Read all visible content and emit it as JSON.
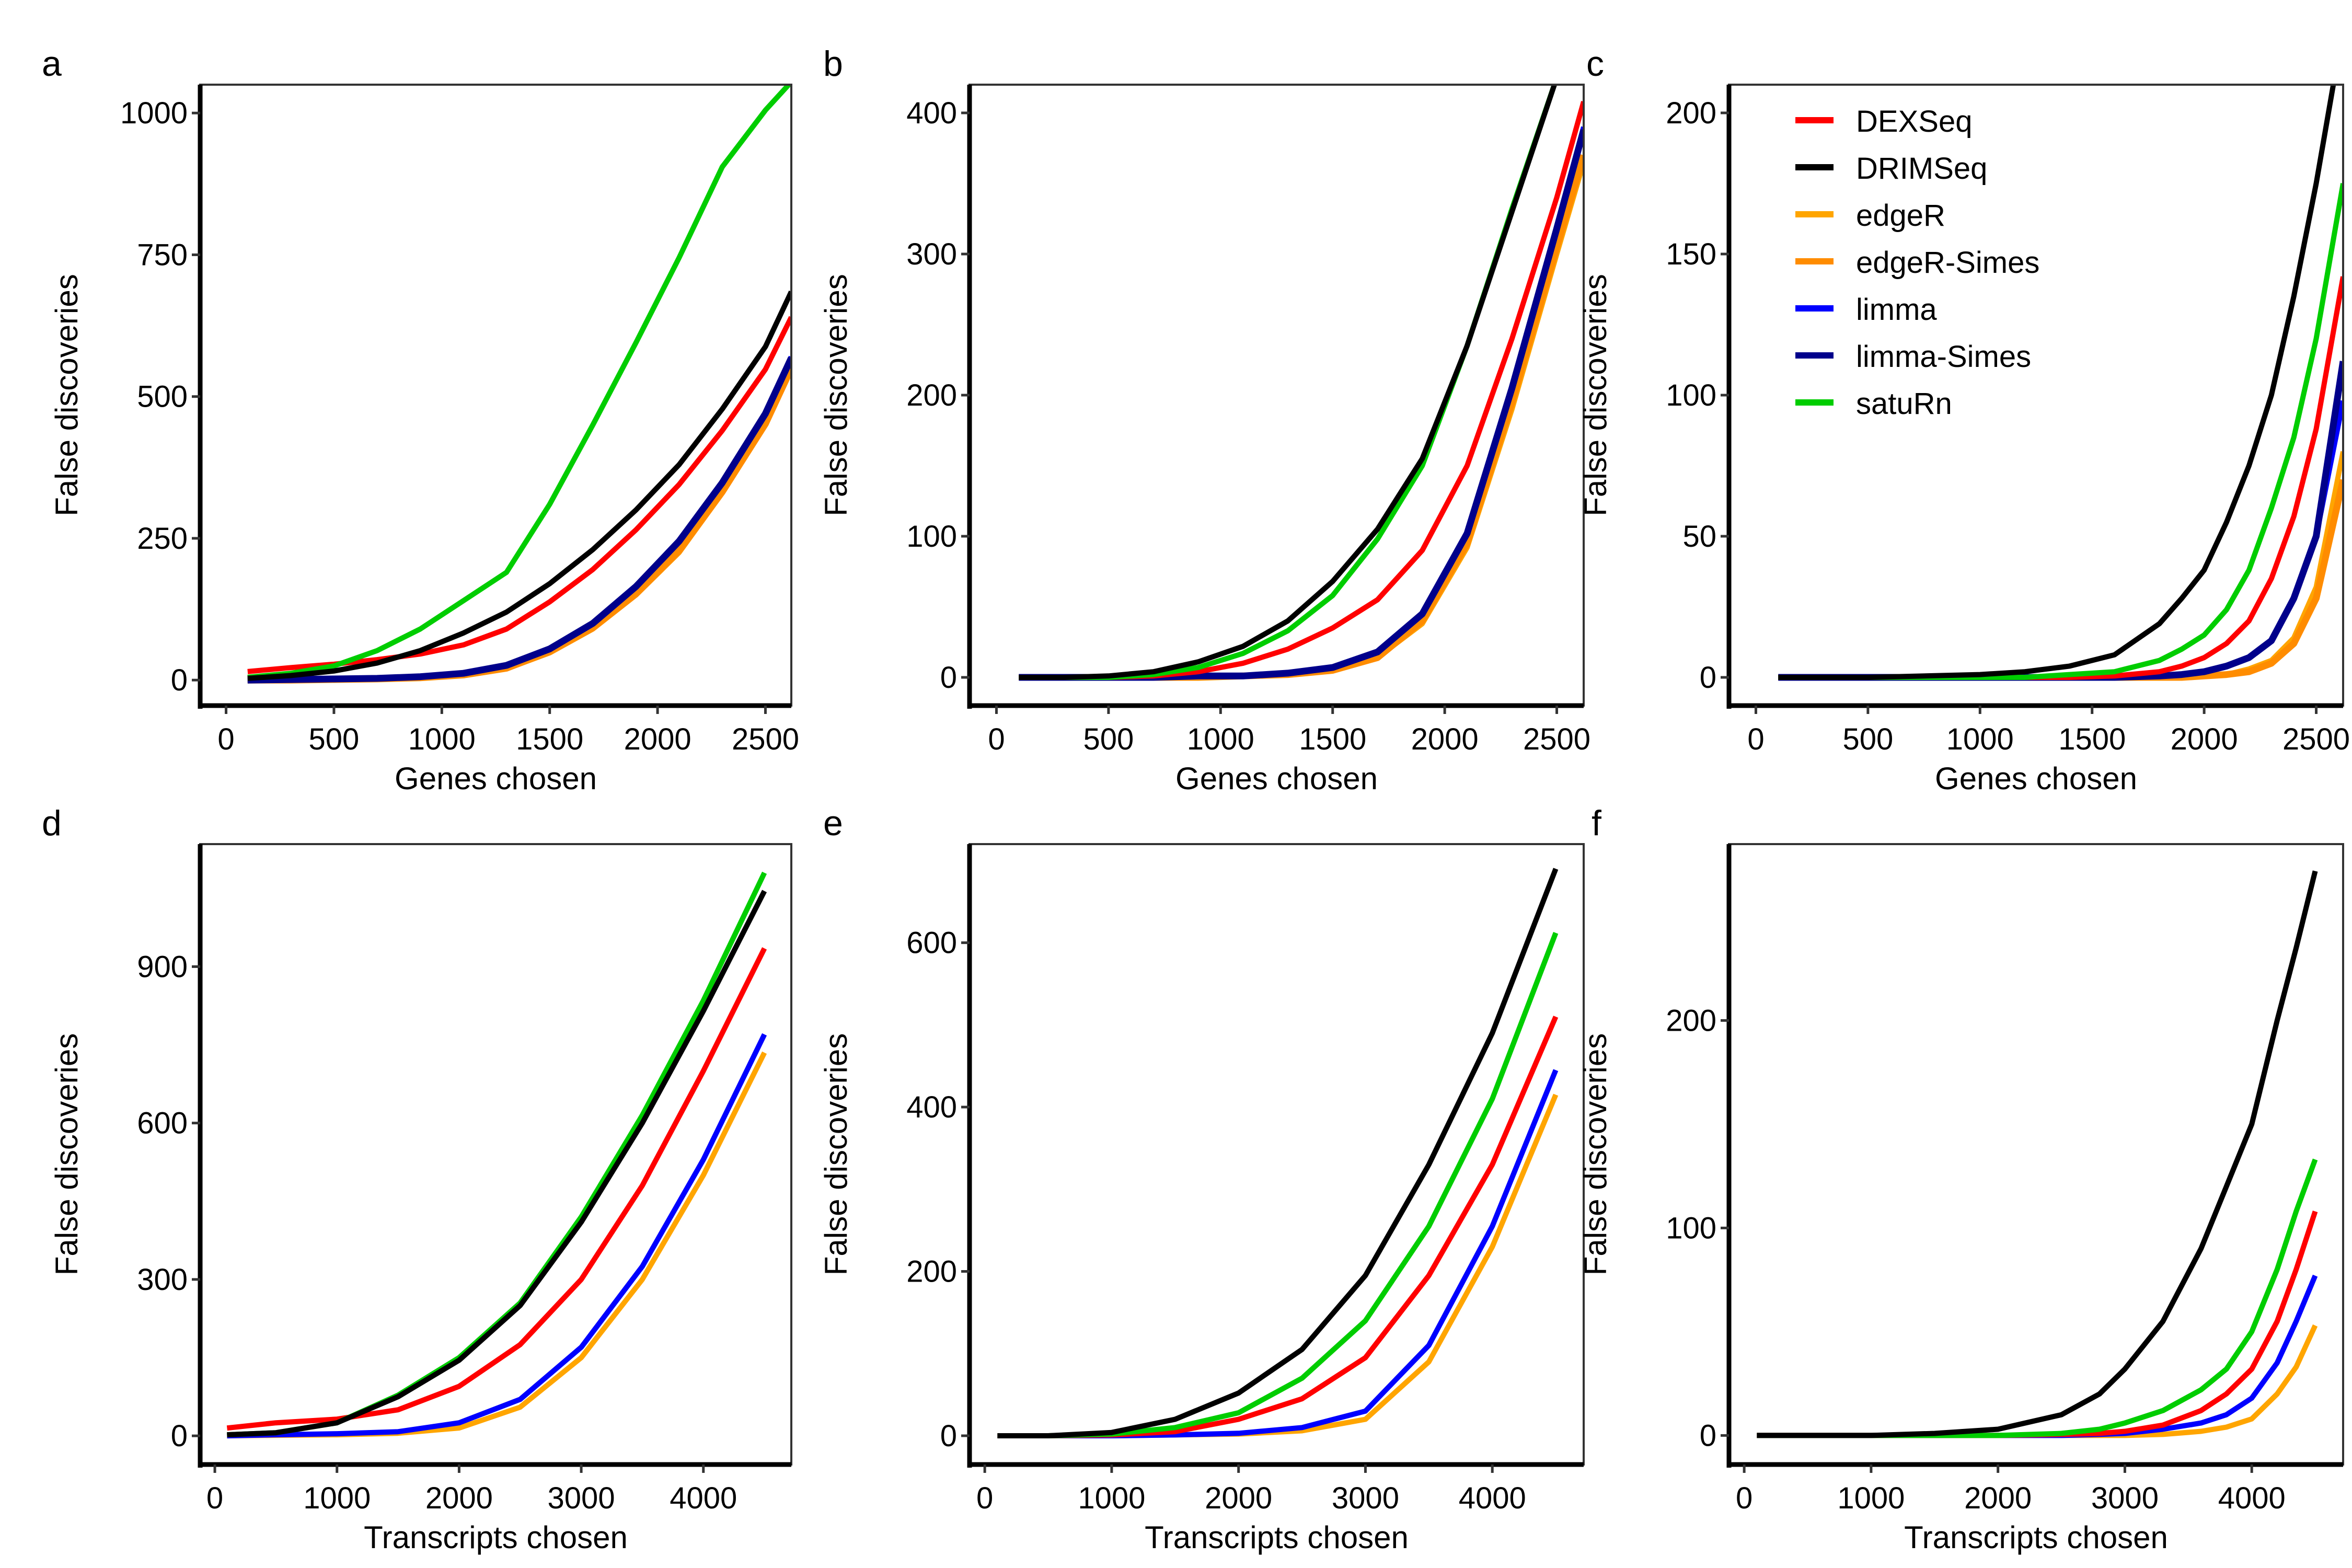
{
  "legend": {
    "placement": "panel-c-top-left",
    "entries": [
      {
        "name": "DEXSeq",
        "color": "#FF0000"
      },
      {
        "name": "DRIMSeq",
        "color": "#000000"
      },
      {
        "name": "edgeR",
        "color": "#FFA500"
      },
      {
        "name": "edgeR-Simes",
        "color": "#FF8C00"
      },
      {
        "name": "limma",
        "color": "#0000FF"
      },
      {
        "name": "limma-Simes",
        "color": "#00008B"
      },
      {
        "name": "satuRn",
        "color": "#00CD00"
      }
    ]
  },
  "chart_data": [
    {
      "id": "a",
      "type": "line",
      "title": "a",
      "xlabel": "Genes chosen",
      "ylabel": "False discoveries",
      "xlim": [
        -120,
        2620
      ],
      "ylim": [
        -45,
        1050
      ],
      "xticks": [
        0,
        500,
        1000,
        1500,
        2000,
        2500
      ],
      "yticks": [
        0,
        250,
        500,
        750,
        1000
      ],
      "x": [
        100,
        300,
        500,
        700,
        900,
        1100,
        1300,
        1500,
        1700,
        1900,
        2100,
        2300,
        2500,
        2620
      ],
      "series": [
        {
          "name": "DEXSeq",
          "values": [
            15,
            22,
            28,
            36,
            46,
            62,
            90,
            138,
            195,
            265,
            345,
            440,
            548,
            640
          ]
        },
        {
          "name": "DRIMSeq",
          "values": [
            3,
            8,
            16,
            30,
            52,
            83,
            120,
            170,
            230,
            300,
            380,
            478,
            588,
            685
          ]
        },
        {
          "name": "edgeR",
          "values": [
            0,
            0,
            1,
            2,
            4,
            9,
            20,
            48,
            90,
            150,
            225,
            330,
            450,
            548
          ]
        },
        {
          "name": "edgeR-Simes",
          "values": [
            0,
            0,
            1,
            2,
            4,
            9,
            21,
            50,
            92,
            152,
            228,
            332,
            452,
            550
          ]
        },
        {
          "name": "limma",
          "values": [
            0,
            1,
            2,
            3,
            6,
            12,
            26,
            55,
            100,
            165,
            245,
            348,
            470,
            570
          ]
        },
        {
          "name": "limma-Simes",
          "values": [
            0,
            1,
            2,
            3,
            6,
            12,
            26,
            55,
            100,
            165,
            245,
            348,
            470,
            568
          ]
        },
        {
          "name": "satuRn",
          "values": [
            5,
            12,
            25,
            52,
            90,
            140,
            190,
            310,
            450,
            595,
            745,
            905,
            1005,
            1055
          ]
        }
      ]
    },
    {
      "id": "b",
      "type": "line",
      "title": "b",
      "xlabel": "Genes chosen",
      "ylabel": "False discoveries",
      "xlim": [
        -120,
        2620
      ],
      "ylim": [
        -20,
        420
      ],
      "xticks": [
        0,
        500,
        1000,
        1500,
        2000,
        2500
      ],
      "yticks": [
        0,
        100,
        200,
        300,
        400
      ],
      "x": [
        100,
        300,
        500,
        700,
        900,
        1100,
        1300,
        1500,
        1700,
        1900,
        2100,
        2300,
        2500,
        2620
      ],
      "series": [
        {
          "name": "DEXSeq",
          "values": [
            0,
            0,
            0,
            1,
            4,
            10,
            20,
            35,
            55,
            90,
            150,
            240,
            340,
            408
          ]
        },
        {
          "name": "DRIMSeq",
          "values": [
            0,
            0,
            1,
            4,
            11,
            22,
            40,
            68,
            105,
            155,
            235,
            330,
            425,
            470
          ]
        },
        {
          "name": "edgeR",
          "values": [
            0,
            0,
            0,
            0,
            0,
            1,
            2,
            5,
            14,
            38,
            92,
            190,
            300,
            365
          ]
        },
        {
          "name": "edgeR-Simes",
          "values": [
            0,
            0,
            0,
            0,
            0,
            1,
            2,
            5,
            14,
            40,
            95,
            195,
            305,
            370
          ]
        },
        {
          "name": "limma",
          "values": [
            0,
            0,
            0,
            0,
            1,
            1,
            3,
            7,
            18,
            45,
            102,
            205,
            320,
            390
          ]
        },
        {
          "name": "limma-Simes",
          "values": [
            0,
            0,
            0,
            0,
            1,
            1,
            3,
            7,
            18,
            45,
            102,
            205,
            318,
            388
          ]
        },
        {
          "name": "satuRn",
          "values": [
            0,
            0,
            0,
            2,
            7,
            17,
            33,
            58,
            98,
            150,
            235,
            332,
            425,
            470
          ]
        }
      ]
    },
    {
      "id": "c",
      "type": "line",
      "title": "c",
      "xlabel": "Genes chosen",
      "ylabel": "False discoveries",
      "xlim": [
        -120,
        2620
      ],
      "ylim": [
        -10,
        210
      ],
      "xticks": [
        0,
        500,
        1000,
        1500,
        2000,
        2500
      ],
      "yticks": [
        0,
        50,
        100,
        150,
        200
      ],
      "x": [
        100,
        500,
        1000,
        1200,
        1400,
        1600,
        1800,
        1900,
        2000,
        2100,
        2200,
        2300,
        2400,
        2500,
        2620
      ],
      "series": [
        {
          "name": "DEXSeq",
          "values": [
            0,
            0,
            0,
            0,
            0,
            0.5,
            2,
            4,
            7,
            12,
            20,
            35,
            57,
            88,
            142
          ]
        },
        {
          "name": "DRIMSeq",
          "values": [
            0,
            0,
            1,
            2,
            4,
            8,
            19,
            28,
            38,
            55,
            75,
            100,
            135,
            175,
            230
          ]
        },
        {
          "name": "edgeR",
          "values": [
            0,
            0,
            0,
            0,
            0,
            0,
            0,
            0,
            0.5,
            1,
            3,
            6,
            14,
            32,
            80
          ]
        },
        {
          "name": "edgeR-Simes",
          "values": [
            0,
            0,
            0,
            0,
            0,
            0,
            0,
            0,
            0.5,
            1,
            2,
            5,
            12,
            28,
            70
          ]
        },
        {
          "name": "limma",
          "values": [
            0,
            0,
            0,
            0,
            0,
            0,
            0.5,
            1,
            2,
            4,
            7,
            13,
            28,
            50,
            98
          ]
        },
        {
          "name": "limma-Simes",
          "values": [
            0,
            0,
            0,
            0,
            0,
            0,
            0.5,
            1,
            2,
            4,
            7,
            13,
            28,
            50,
            112
          ]
        },
        {
          "name": "satuRn",
          "values": [
            0,
            0,
            0,
            0,
            1,
            2,
            6,
            10,
            15,
            24,
            38,
            60,
            85,
            120,
            175
          ]
        }
      ]
    },
    {
      "id": "d",
      "type": "line",
      "title": "d",
      "xlabel": "Transcripts chosen",
      "ylabel": "False discoveries",
      "xlim": [
        -120,
        4720
      ],
      "ylim": [
        -55,
        1135
      ],
      "xticks": [
        0,
        1000,
        2000,
        3000,
        4000
      ],
      "yticks": [
        0,
        300,
        600,
        900
      ],
      "x": [
        100,
        500,
        1000,
        1500,
        2000,
        2500,
        3000,
        3500,
        4000,
        4500
      ],
      "series": [
        {
          "name": "DEXSeq",
          "values": [
            15,
            25,
            32,
            50,
            95,
            175,
            300,
            480,
            700,
            935
          ]
        },
        {
          "name": "DRIMSeq",
          "values": [
            2,
            6,
            25,
            75,
            145,
            250,
            410,
            600,
            815,
            1045
          ]
        },
        {
          "name": "edgeR",
          "values": [
            0,
            1,
            2,
            5,
            15,
            55,
            150,
            300,
            500,
            735
          ]
        },
        {
          "name": "limma",
          "values": [
            0,
            2,
            4,
            8,
            25,
            70,
            170,
            325,
            530,
            770
          ]
        },
        {
          "name": "satuRn",
          "values": [
            2,
            6,
            25,
            78,
            150,
            255,
            420,
            615,
            835,
            1080
          ]
        }
      ]
    },
    {
      "id": "e",
      "type": "line",
      "title": "e",
      "xlabel": "Transcripts chosen",
      "ylabel": "False discoveries",
      "xlim": [
        -120,
        4720
      ],
      "ylim": [
        -35,
        720
      ],
      "xticks": [
        0,
        1000,
        2000,
        3000,
        4000
      ],
      "yticks": [
        0,
        200,
        400,
        600
      ],
      "x": [
        100,
        500,
        1000,
        1500,
        2000,
        2500,
        3000,
        3500,
        4000,
        4500
      ],
      "series": [
        {
          "name": "DEXSeq",
          "values": [
            0,
            0,
            1,
            5,
            20,
            45,
            95,
            195,
            330,
            510
          ]
        },
        {
          "name": "DRIMSeq",
          "values": [
            0,
            0,
            4,
            20,
            52,
            105,
            195,
            330,
            490,
            690
          ]
        },
        {
          "name": "edgeR",
          "values": [
            0,
            0,
            0,
            1,
            2,
            6,
            20,
            90,
            230,
            415
          ]
        },
        {
          "name": "limma",
          "values": [
            0,
            0,
            0,
            1,
            3,
            10,
            30,
            110,
            255,
            445
          ]
        },
        {
          "name": "satuRn",
          "values": [
            0,
            0,
            2,
            10,
            28,
            70,
            140,
            255,
            410,
            612
          ]
        }
      ]
    },
    {
      "id": "f",
      "type": "line",
      "title": "f",
      "xlabel": "Transcripts chosen",
      "ylabel": "False discoveries",
      "xlim": [
        -120,
        4720
      ],
      "ylim": [
        -14,
        285
      ],
      "xticks": [
        0,
        1000,
        2000,
        3000,
        4000
      ],
      "yticks": [
        0,
        100,
        200
      ],
      "x": [
        100,
        1000,
        1500,
        2000,
        2500,
        2800,
        3000,
        3300,
        3600,
        3800,
        4000,
        4200,
        4350,
        4500
      ],
      "series": [
        {
          "name": "DEXSeq",
          "values": [
            0,
            0,
            0,
            0,
            0.5,
            1,
            2,
            5,
            12,
            20,
            32,
            55,
            80,
            108
          ]
        },
        {
          "name": "DRIMSeq",
          "values": [
            0,
            0,
            1,
            3,
            10,
            20,
            32,
            55,
            90,
            120,
            150,
            200,
            235,
            272
          ]
        },
        {
          "name": "edgeR",
          "values": [
            0,
            0,
            0,
            0,
            0,
            0,
            0,
            0.5,
            2,
            4,
            8,
            20,
            33,
            53
          ]
        },
        {
          "name": "limma",
          "values": [
            0,
            0,
            0,
            0,
            0,
            0.5,
            1,
            3,
            6,
            10,
            18,
            35,
            55,
            77
          ]
        },
        {
          "name": "satuRn",
          "values": [
            0,
            0,
            0,
            0,
            1,
            3,
            6,
            12,
            22,
            32,
            50,
            80,
            108,
            133
          ]
        }
      ]
    }
  ]
}
